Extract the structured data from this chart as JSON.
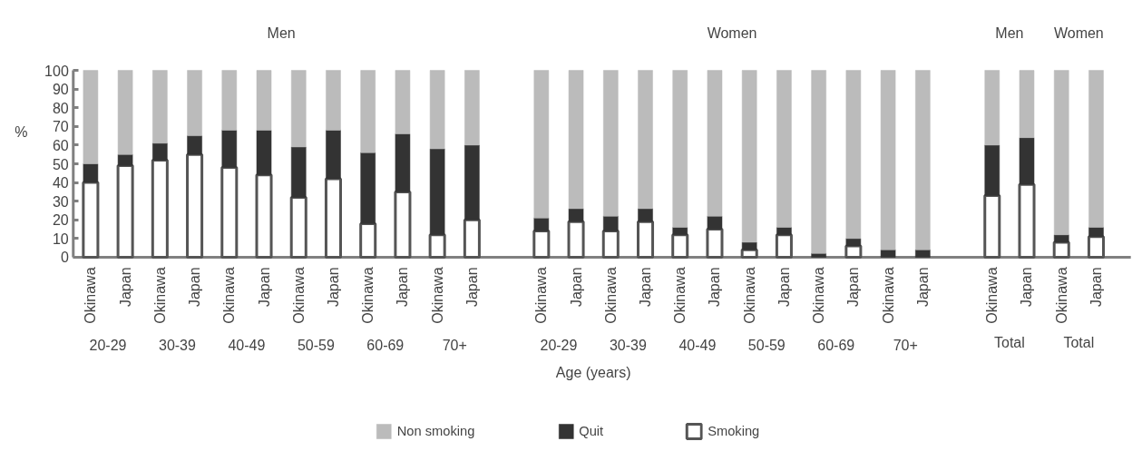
{
  "chart_data": {
    "type": "bar",
    "stacked": true,
    "xlabel": "Age (years)",
    "ylabel": "%",
    "categories": [
      "Okinawa",
      "Japan",
      "Okinawa",
      "Japan",
      "Okinawa",
      "Japan",
      "Okinawa",
      "Japan",
      "Okinawa",
      "Japan",
      "Okinawa",
      "Japan",
      null,
      "Okinawa",
      "Japan",
      "Okinawa",
      "Japan",
      "Okinawa",
      "Japan",
      "Okinawa",
      "Japan",
      "Okinawa",
      "Japan",
      "Okinawa",
      "Japan",
      null,
      "Okinawa",
      "Japan",
      "Okinawa",
      "Japan"
    ],
    "series": [
      {
        "name": "Smoking",
        "color": "#ffffff",
        "values": [
          40,
          49,
          52,
          55,
          48,
          44,
          32,
          42,
          18,
          35,
          12,
          20,
          null,
          14,
          19,
          14,
          19,
          12,
          15,
          4,
          12,
          null,
          6,
          null,
          null,
          null,
          33,
          39,
          8,
          11
        ]
      },
      {
        "name": "Quit",
        "color": "#333333",
        "values": [
          10,
          6,
          9,
          10,
          20,
          24,
          27,
          26,
          38,
          31,
          46,
          40,
          null,
          7,
          7,
          8,
          7,
          4,
          7,
          4,
          4,
          2,
          4,
          4,
          4,
          null,
          27,
          25,
          4,
          5
        ]
      },
      {
        "name": "Non smoking",
        "color": "#bbbbbb",
        "values": [
          50,
          45,
          39,
          35,
          32,
          32,
          41,
          32,
          44,
          34,
          42,
          40,
          null,
          79,
          74,
          78,
          74,
          84,
          78,
          92,
          84,
          98,
          90,
          96,
          96,
          null,
          40,
          36,
          88,
          84
        ]
      }
    ],
    "ylim": [
      0,
      100
    ],
    "yticks": [
      0,
      10,
      20,
      30,
      40,
      50,
      60,
      70,
      80,
      90,
      100
    ],
    "grid": false,
    "legend": "bottom",
    "annotations": [
      "Men",
      "Women",
      "Men",
      "Women",
      "20-29",
      "30-39",
      "40-49",
      "50-59",
      "60-69",
      "70+",
      "20-29",
      "30-39",
      "40-49",
      "50-59",
      "60-69",
      "70+",
      "Total",
      "Total"
    ]
  }
}
